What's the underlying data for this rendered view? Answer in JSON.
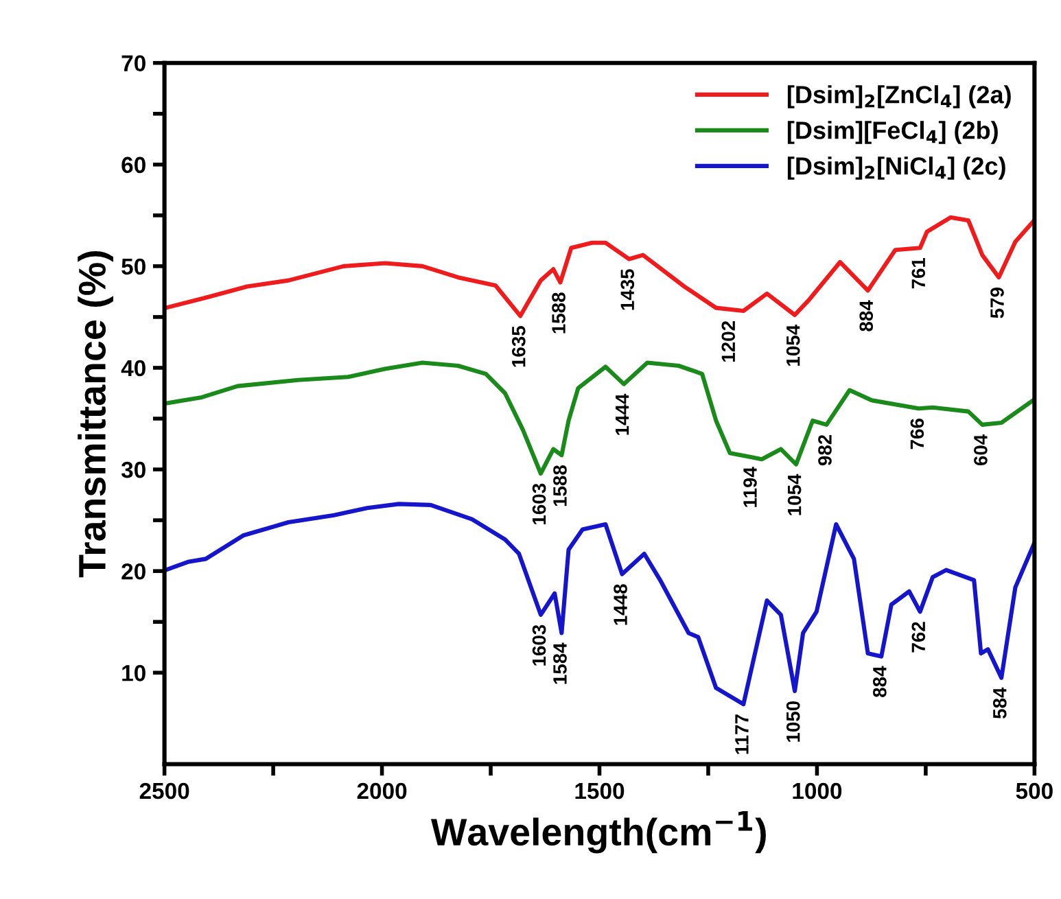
{
  "chart_data": {
    "type": "line",
    "xlabel": "Wavelength(cm$^{−1}$)",
    "ylabel": "Transmittance (%)",
    "xlim": [
      2500,
      500
    ],
    "xticks": [
      2500,
      {
        "value": 2250,
        "label": null
      },
      2000,
      {
        "value": 1750,
        "label": null
      },
      1500,
      {
        "value": 1250,
        "label": null
      },
      1000,
      {
        "value": 750,
        "label": null
      },
      500
    ],
    "ylim": [
      1,
      70
    ],
    "yticks": [
      10,
      {
        "value": 15,
        "label": null
      },
      20,
      {
        "value": 25,
        "label": null
      },
      30,
      {
        "value": 35,
        "label": null
      },
      40,
      {
        "value": 45,
        "label": null
      },
      50,
      {
        "value": 55,
        "label": null
      },
      60,
      {
        "value": 65,
        "label": null
      },
      70
    ],
    "grid": false,
    "legend": "top right",
    "marker": "none",
    "line_style": "solid",
    "series": [
      {
        "name": "[Dsim]$_{2}$[ZnCl$_{4}$] (2a)",
        "color": "#ee1c1c",
        "x": [
          2497,
          2405,
          2310,
          2215,
          2088,
          1993,
          1907,
          1825,
          1739,
          1682,
          1635,
          1606,
          1590,
          1565,
          1517,
          1486,
          1432,
          1400,
          1305,
          1232,
          1169,
          1115,
          1051,
          1020,
          947,
          883,
          820,
          763,
          747,
          693,
          652,
          620,
          582,
          544,
          503
        ],
        "values": [
          45.9,
          46.9,
          48.0,
          48.6,
          50.0,
          50.3,
          50.0,
          48.9,
          48.1,
          45.1,
          48.6,
          49.7,
          48.4,
          51.8,
          52.3,
          52.3,
          50.7,
          51.1,
          48.0,
          45.9,
          45.6,
          47.3,
          45.2,
          46.6,
          50.4,
          47.6,
          51.6,
          51.8,
          53.4,
          54.8,
          54.5,
          51.1,
          48.9,
          52.4,
          54.4
        ]
      },
      {
        "name": "[Dsim][FeCl$_{4}$] (2b)",
        "color": "#1a8a1a",
        "x": [
          2497,
          2414,
          2332,
          2193,
          2078,
          1993,
          1907,
          1825,
          1761,
          1717,
          1676,
          1635,
          1606,
          1587,
          1571,
          1549,
          1486,
          1444,
          1390,
          1318,
          1264,
          1232,
          1200,
          1150,
          1127,
          1083,
          1048,
          1010,
          978,
          925,
          874,
          766,
          734,
          652,
          620,
          576,
          503
        ],
        "values": [
          36.5,
          37.1,
          38.2,
          38.8,
          39.1,
          39.9,
          40.5,
          40.2,
          39.4,
          37.5,
          33.9,
          29.6,
          32.0,
          31.4,
          34.8,
          38.0,
          40.1,
          38.4,
          40.5,
          40.2,
          39.4,
          34.8,
          31.6,
          31.2,
          31.0,
          32.0,
          30.5,
          34.8,
          34.4,
          37.8,
          36.8,
          36.0,
          36.1,
          35.7,
          34.4,
          34.6,
          36.8
        ]
      },
      {
        "name": "[Dsim]$_{2}$[NiCl$_{4}$] (2c)",
        "color": "#1515cc",
        "x": [
          2497,
          2446,
          2405,
          2319,
          2215,
          2110,
          2034,
          1961,
          1888,
          1793,
          1717,
          1685,
          1635,
          1603,
          1587,
          1571,
          1539,
          1486,
          1448,
          1397,
          1359,
          1295,
          1273,
          1232,
          1169,
          1115,
          1083,
          1051,
          1032,
          1001,
          956,
          915,
          883,
          852,
          829,
          788,
          763,
          734,
          703,
          639,
          623,
          607,
          576,
          544,
          500
        ],
        "values": [
          20.1,
          20.9,
          21.2,
          23.5,
          24.8,
          25.5,
          26.2,
          26.6,
          26.5,
          25.1,
          23.1,
          21.7,
          15.7,
          17.8,
          13.9,
          22.1,
          24.1,
          24.6,
          19.7,
          21.7,
          19.0,
          13.9,
          13.5,
          8.5,
          6.9,
          17.1,
          15.7,
          8.2,
          13.9,
          16.0,
          24.6,
          21.2,
          11.9,
          11.6,
          16.7,
          18.0,
          16.0,
          19.4,
          20.1,
          19.1,
          11.9,
          12.3,
          9.5,
          18.4,
          22.8
        ]
      }
    ],
    "annotations": [
      {
        "text": "1635",
        "x": 1682,
        "y": 45.1
      },
      {
        "text": "1588",
        "x": 1590,
        "y": 48.4
      },
      {
        "text": "1435",
        "x": 1432,
        "y": 50.7
      },
      {
        "text": "1202",
        "x": 1200,
        "y": 45.6
      },
      {
        "text": "1054",
        "x": 1051,
        "y": 45.2
      },
      {
        "text": "884",
        "x": 883,
        "y": 47.6
      },
      {
        "text": "761",
        "x": 763,
        "y": 51.8
      },
      {
        "text": "579",
        "x": 582,
        "y": 48.9
      },
      {
        "text": "1603",
        "x": 1635,
        "y": 29.6
      },
      {
        "text": "1588",
        "x": 1587,
        "y": 31.4
      },
      {
        "text": "1444",
        "x": 1444,
        "y": 38.4
      },
      {
        "text": "1194",
        "x": 1150,
        "y": 31.2
      },
      {
        "text": "1054",
        "x": 1048,
        "y": 30.5
      },
      {
        "text": "982",
        "x": 978,
        "y": 34.4
      },
      {
        "text": "766",
        "x": 766,
        "y": 36.0
      },
      {
        "text": "604",
        "x": 620,
        "y": 34.4
      },
      {
        "text": "1603",
        "x": 1635,
        "y": 15.7
      },
      {
        "text": "1584",
        "x": 1587,
        "y": 13.9
      },
      {
        "text": "1448",
        "x": 1448,
        "y": 19.7
      },
      {
        "text": "1177",
        "x": 1169,
        "y": 6.9
      },
      {
        "text": "1050",
        "x": 1051,
        "y": 8.2
      },
      {
        "text": "884",
        "x": 852,
        "y": 11.6
      },
      {
        "text": "762",
        "x": 763,
        "y": 16.0
      },
      {
        "text": "584",
        "x": 576,
        "y": 9.5
      }
    ]
  }
}
